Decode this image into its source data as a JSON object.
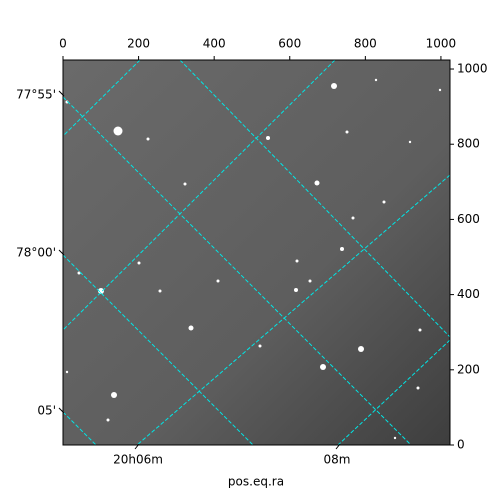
{
  "chart_data": {
    "type": "image",
    "xlabel": "pos.eq.ra",
    "xlim": [
      0,
      1024
    ],
    "xticks": [
      0,
      200,
      400,
      600,
      800,
      1000
    ],
    "ylim": [
      0,
      1024
    ],
    "yticks": [
      0,
      200,
      400,
      600,
      800,
      1000
    ],
    "dec_ticks": [
      "77°55'",
      "78°00'",
      "05'"
    ],
    "ra_ticks": [
      "20h06m",
      "08m"
    ]
  }
}
